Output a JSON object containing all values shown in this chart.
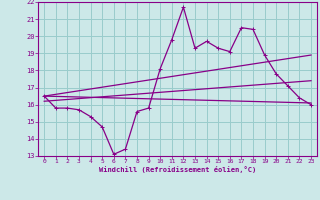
{
  "title": "",
  "xlabel": "Windchill (Refroidissement éolien,°C)",
  "ylabel": "",
  "bg_color": "#cce8e8",
  "line_color": "#880088",
  "grid_color": "#99cccc",
  "xlim": [
    -0.5,
    23.5
  ],
  "ylim": [
    13,
    22
  ],
  "yticks": [
    13,
    14,
    15,
    16,
    17,
    18,
    19,
    20,
    21,
    22
  ],
  "xticks": [
    0,
    1,
    2,
    3,
    4,
    5,
    6,
    7,
    8,
    9,
    10,
    11,
    12,
    13,
    14,
    15,
    16,
    17,
    18,
    19,
    20,
    21,
    22,
    23
  ],
  "main_x": [
    0,
    1,
    2,
    3,
    4,
    5,
    6,
    7,
    8,
    9,
    10,
    11,
    12,
    13,
    14,
    15,
    16,
    17,
    18,
    19,
    20,
    21,
    22,
    23
  ],
  "main_y": [
    16.5,
    15.8,
    15.8,
    15.7,
    15.3,
    14.7,
    13.1,
    13.4,
    15.6,
    15.8,
    18.1,
    19.8,
    21.7,
    19.3,
    19.7,
    19.3,
    19.1,
    20.5,
    20.4,
    18.9,
    17.8,
    17.1,
    16.4,
    16.0
  ],
  "trend1_x": [
    0,
    23
  ],
  "trend1_y": [
    16.5,
    16.1
  ],
  "trend2_x": [
    0,
    23
  ],
  "trend2_y": [
    16.5,
    18.9
  ],
  "trend3_x": [
    0,
    23
  ],
  "trend3_y": [
    16.2,
    17.4
  ]
}
